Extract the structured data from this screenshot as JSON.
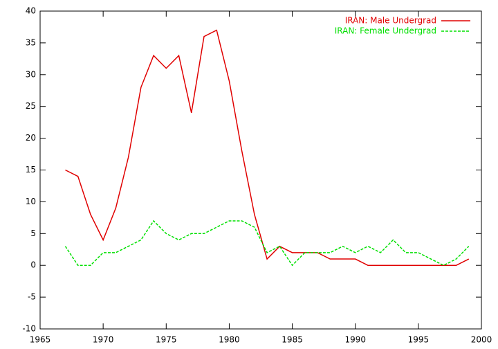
{
  "chart_data": {
    "type": "line",
    "x": [
      1967,
      1968,
      1969,
      1970,
      1971,
      1972,
      1973,
      1974,
      1975,
      1976,
      1977,
      1978,
      1979,
      1980,
      1981,
      1982,
      1983,
      1984,
      1985,
      1986,
      1987,
      1988,
      1989,
      1990,
      1991,
      1992,
      1993,
      1994,
      1995,
      1996,
      1997,
      1998,
      1999
    ],
    "series": [
      {
        "name": "IRAN: Male Undergrad",
        "color": "#e00000",
        "dash": false,
        "values": [
          15,
          14,
          8,
          4,
          9,
          17,
          28,
          33,
          31,
          33,
          24,
          36,
          37,
          29,
          18,
          8,
          1,
          3,
          2,
          2,
          2,
          1,
          1,
          1,
          0,
          0,
          0,
          0,
          0,
          0,
          0,
          0,
          1
        ]
      },
      {
        "name": "IRAN: Female Undergrad",
        "color": "#00e000",
        "dash": true,
        "values": [
          3,
          0,
          0,
          2,
          2,
          3,
          4,
          7,
          5,
          4,
          5,
          5,
          6,
          7,
          7,
          6,
          2,
          3,
          0,
          2,
          2,
          2,
          3,
          2,
          3,
          2,
          4,
          2,
          2,
          1,
          0,
          1,
          3
        ]
      }
    ],
    "xlim": [
      1965,
      2000
    ],
    "xticks": [
      1965,
      1970,
      1975,
      1980,
      1985,
      1990,
      1995,
      2000
    ],
    "ylim": [
      -10,
      40
    ],
    "yticks": [
      -10,
      -5,
      0,
      5,
      10,
      15,
      20,
      25,
      30,
      35,
      40
    ],
    "legend": "top-right"
  }
}
